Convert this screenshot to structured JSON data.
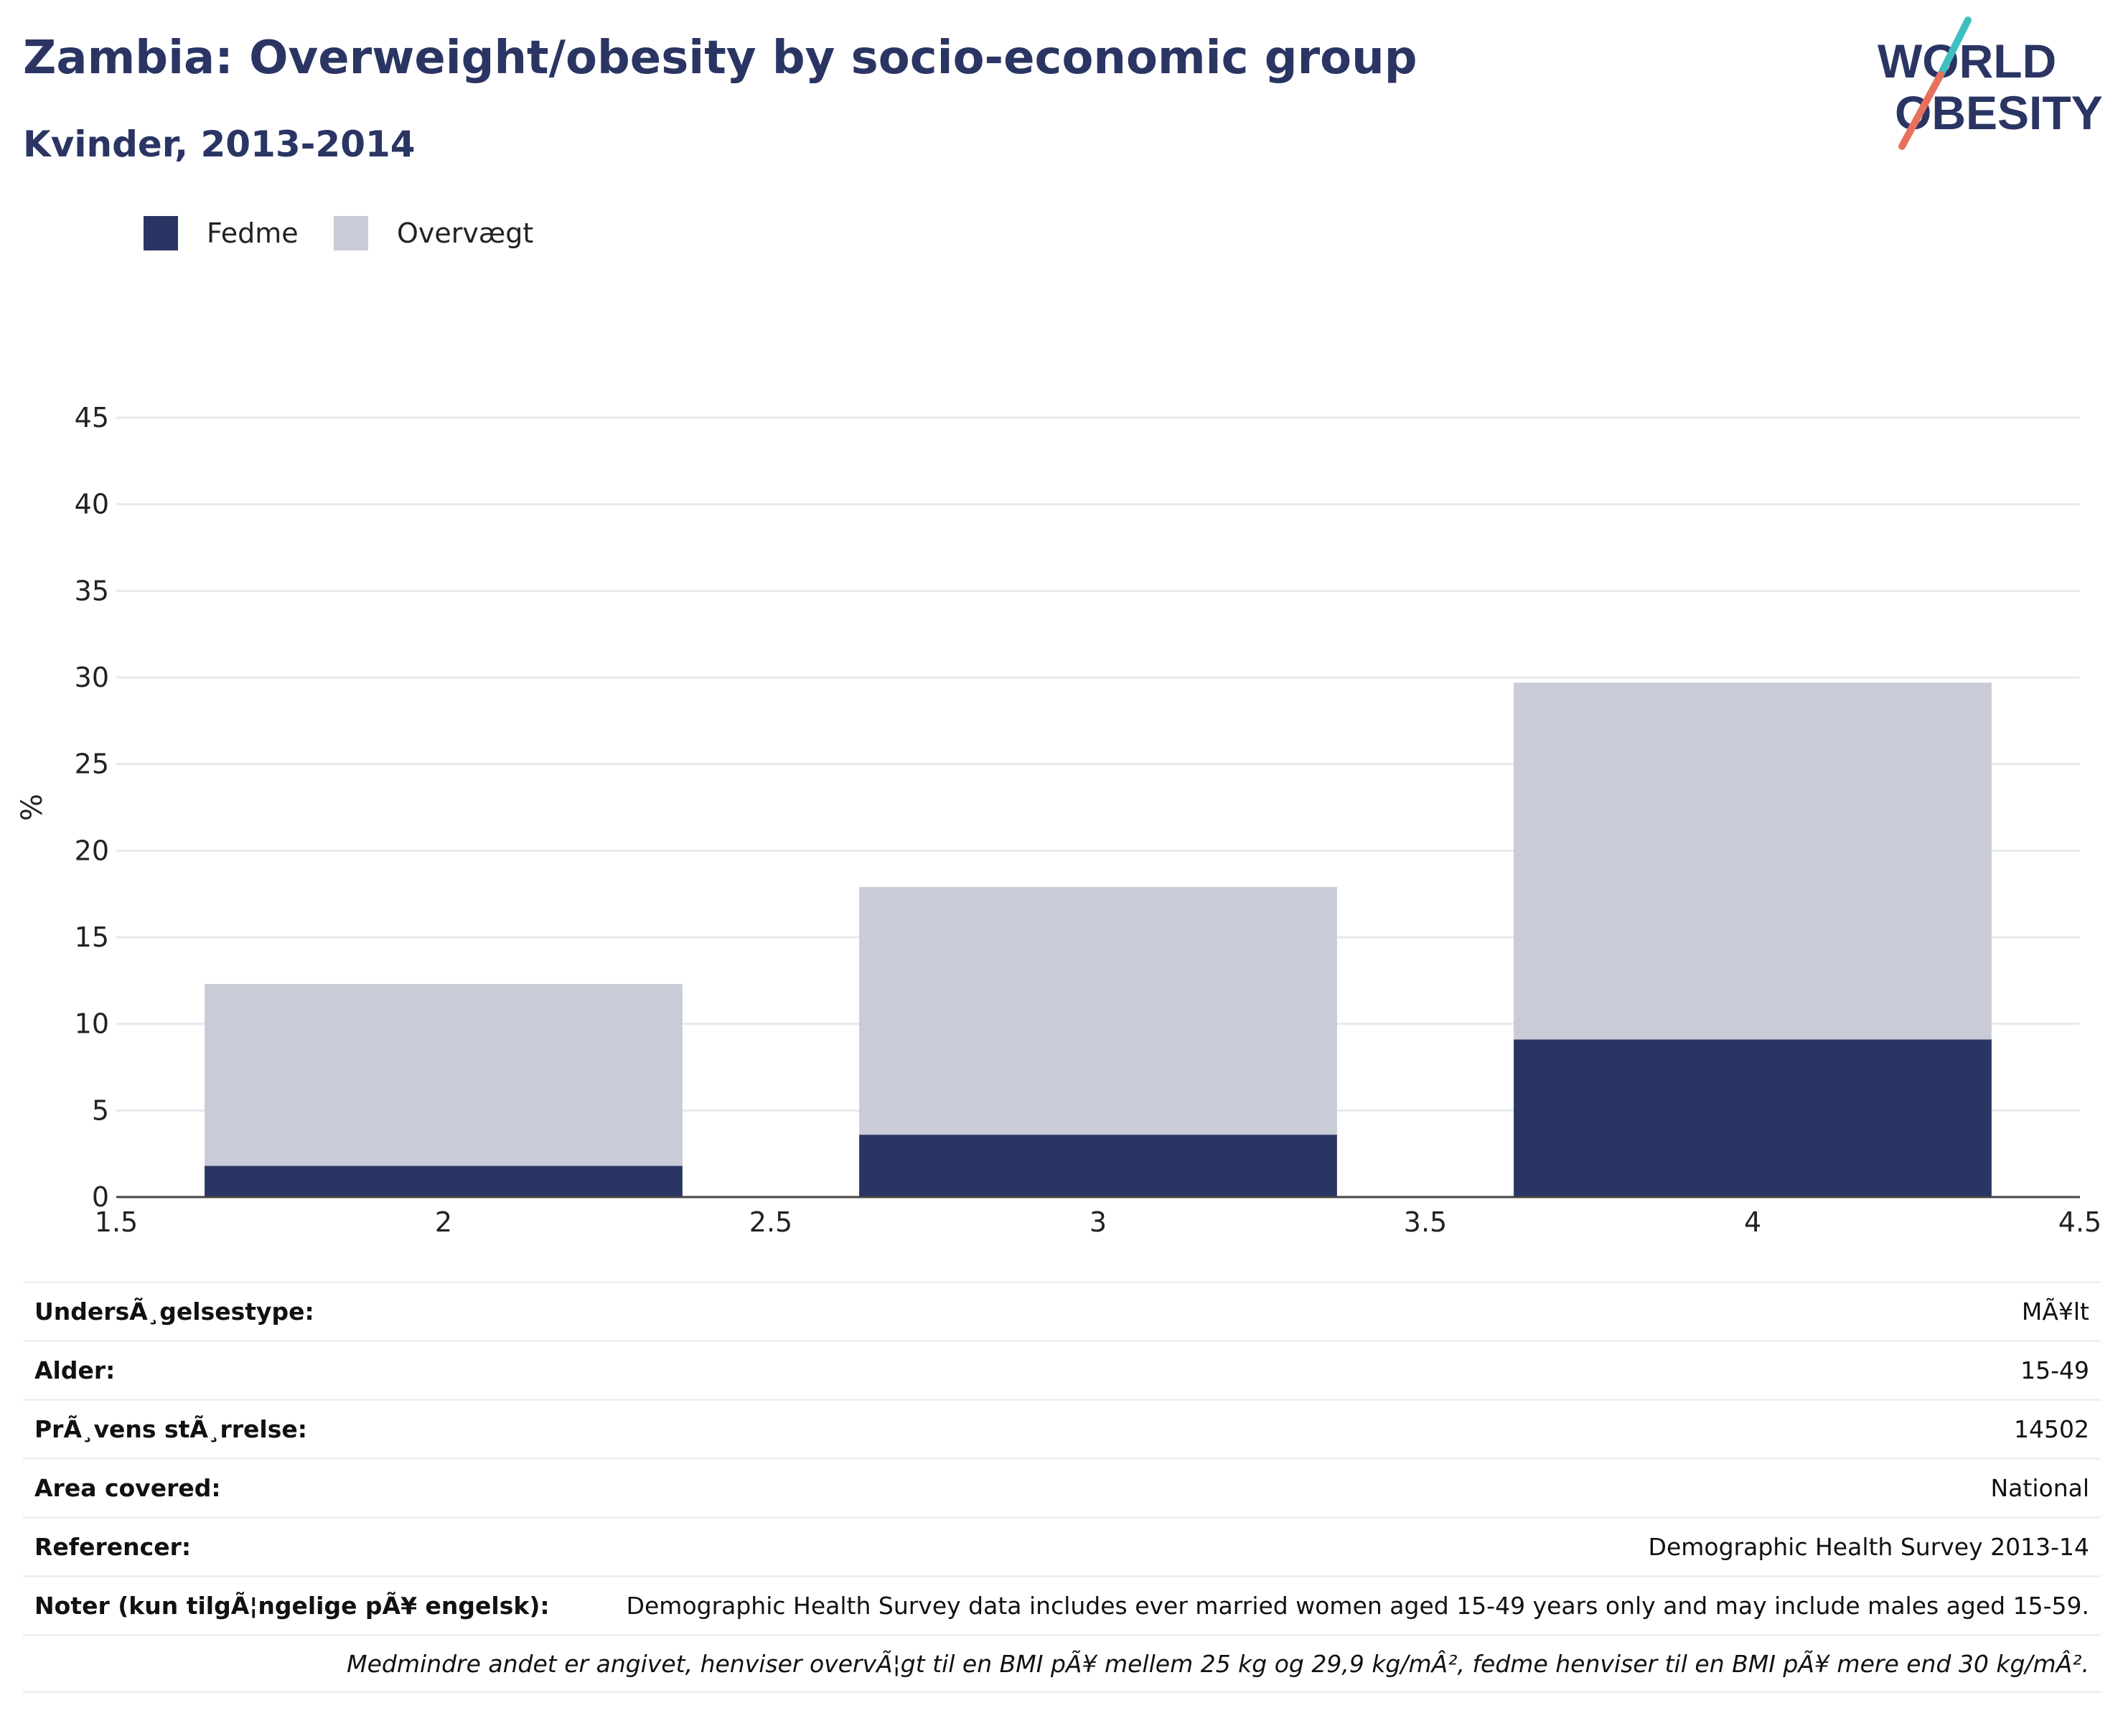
{
  "header": {
    "title": "Zambia: Overweight/obesity by socio-economic group",
    "subtitle": "Kvinder, 2013-2014"
  },
  "logo": {
    "line1": "WORLD",
    "line2": "OBESITY",
    "accent_colors": [
      "#3fbfbf",
      "#e8705f"
    ]
  },
  "legend": [
    {
      "label": "Fedme",
      "color": "#2a3563"
    },
    {
      "label": "Overvægt",
      "color": "#c9cbd6"
    }
  ],
  "chart_data": {
    "type": "bar",
    "stacked": true,
    "ylabel": "%",
    "xlabel": "",
    "x": [
      2,
      3,
      4
    ],
    "bar_width": 0.73,
    "xlim": [
      1.5,
      4.5
    ],
    "ylim": [
      0,
      45
    ],
    "xticks": [
      1.5,
      2,
      2.5,
      3,
      3.5,
      4,
      4.5
    ],
    "xtick_labels": [
      "1.5",
      "2",
      "2.5",
      "3",
      "3.5",
      "4",
      "4.5"
    ],
    "yticks": [
      0,
      5,
      10,
      15,
      20,
      25,
      30,
      35,
      40,
      45
    ],
    "ytick_labels": [
      "0",
      "5",
      "10",
      "15",
      "20",
      "25",
      "30",
      "35",
      "40",
      "45"
    ],
    "grid": true,
    "series": [
      {
        "name": "Fedme",
        "color": "#2a3563",
        "values": [
          1.8,
          3.6,
          9.1
        ]
      },
      {
        "name": "Overvægt",
        "color": "#c9cbd6",
        "values": [
          10.5,
          14.3,
          20.6
        ]
      }
    ]
  },
  "info_rows": [
    {
      "label": "UndersÃ¸gelsestype:",
      "value": "MÃ¥lt"
    },
    {
      "label": "Alder:",
      "value": "15-49"
    },
    {
      "label": "PrÃ¸vens stÃ¸rrelse:",
      "value": "14502"
    },
    {
      "label": "Area covered:",
      "value": "National"
    },
    {
      "label": "Referencer:",
      "value": "Demographic Health Survey 2013-14"
    },
    {
      "label": "Noter (kun tilgÃ¦ngelige pÃ¥ engelsk):",
      "value": "Demographic Health Survey data includes ever married women aged 15-49 years only and may include males aged 15-59."
    }
  ],
  "footnote": "Medmindre andet er angivet, henviser overvÃ¦gt til en BMI pÃ¥ mellem 25 kg og 29,9 kg/mÂ², fedme henviser til en BMI pÃ¥ mere end 30 kg/mÂ²."
}
